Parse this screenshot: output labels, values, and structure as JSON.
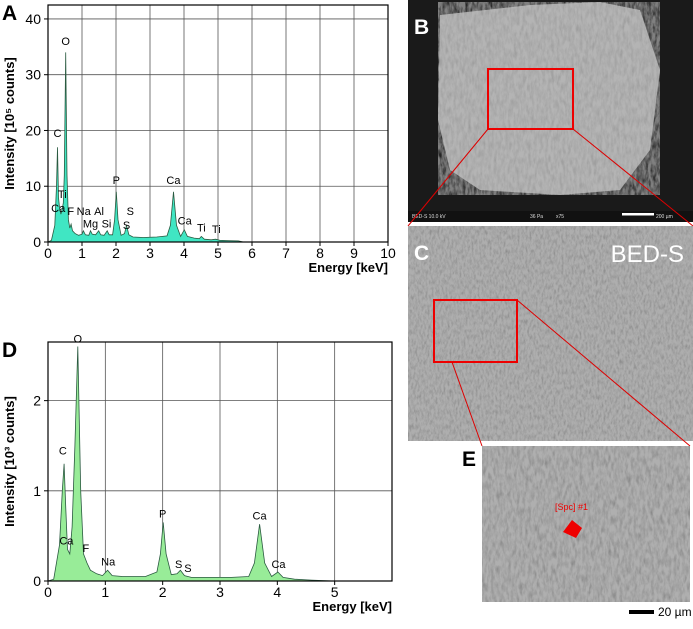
{
  "chart_data": [
    {
      "type": "area",
      "panel": "A",
      "ylabel": "Intensity [10⁵ counts]",
      "xlabel": "Energy [keV]",
      "color": "#40e6c3",
      "xlim": [
        0,
        10
      ],
      "xticks": [
        0,
        1,
        2,
        3,
        4,
        5,
        6,
        7,
        8,
        9,
        10
      ],
      "ylim": [
        0,
        42.5
      ],
      "yticks": [
        0,
        10,
        20,
        30,
        40
      ],
      "grid": true,
      "x": [
        0,
        0.1,
        0.2,
        0.25,
        0.28,
        0.31,
        0.34,
        0.38,
        0.42,
        0.45,
        0.48,
        0.52,
        0.56,
        0.6,
        0.64,
        0.68,
        0.72,
        0.8,
        0.9,
        1.0,
        1.04,
        1.1,
        1.2,
        1.25,
        1.3,
        1.4,
        1.49,
        1.55,
        1.65,
        1.74,
        1.8,
        1.9,
        1.96,
        2.01,
        2.06,
        2.15,
        2.25,
        2.31,
        2.38,
        2.5,
        2.8,
        3.2,
        3.5,
        3.6,
        3.69,
        3.78,
        3.9,
        4.01,
        4.1,
        4.3,
        4.45,
        4.51,
        4.6,
        4.8,
        4.93,
        5.05,
        5.3,
        5.6,
        5.75
      ],
      "values": [
        0,
        0.3,
        3,
        10,
        17,
        8,
        6,
        5,
        6,
        7,
        12,
        34,
        12,
        4,
        2.5,
        3.2,
        2,
        1.5,
        1.2,
        1.4,
        2,
        1.3,
        1.2,
        2,
        1.4,
        1.3,
        2,
        1.3,
        1.2,
        2,
        1.3,
        1.3,
        4,
        9,
        4,
        1.2,
        1.5,
        3,
        1.3,
        0.9,
        0.8,
        0.9,
        1.1,
        3,
        9,
        3,
        1,
        2.2,
        1,
        0.7,
        0.6,
        1,
        0.5,
        0.4,
        0.5,
        0.3,
        0.25,
        0.2,
        0
      ],
      "annotations": [
        {
          "text": "O",
          "x": 0.52,
          "y": 35
        },
        {
          "text": "C",
          "x": 0.28,
          "y": 18.5
        },
        {
          "text": "Ti",
          "x": 0.42,
          "y": 7.5
        },
        {
          "text": "Ca",
          "x": 0.3,
          "y": 5
        },
        {
          "text": "F",
          "x": 0.67,
          "y": 4.5
        },
        {
          "text": "Na",
          "x": 1.05,
          "y": 4.5
        },
        {
          "text": "Al",
          "x": 1.5,
          "y": 4.5
        },
        {
          "text": "Mg",
          "x": 1.25,
          "y": 2.2
        },
        {
          "text": "Si",
          "x": 1.72,
          "y": 2.2
        },
        {
          "text": "P",
          "x": 2.01,
          "y": 10
        },
        {
          "text": "S",
          "x": 2.42,
          "y": 4.5
        },
        {
          "text": "S",
          "x": 2.31,
          "y": 2
        },
        {
          "text": "Ca",
          "x": 3.69,
          "y": 10
        },
        {
          "text": "Ca",
          "x": 4.02,
          "y": 2.8
        },
        {
          "text": "Ti",
          "x": 4.51,
          "y": 1.5
        },
        {
          "text": "Ti",
          "x": 4.95,
          "y": 1.3
        }
      ]
    },
    {
      "type": "area",
      "panel": "D",
      "ylabel": "Intensity [10³ counts]",
      "xlabel": "Energy [keV]",
      "color": "#98ec98",
      "xlim": [
        0,
        6
      ],
      "xticks": [
        0,
        1,
        2,
        3,
        4,
        5
      ],
      "ylim": [
        0,
        2.65
      ],
      "yticks": [
        0,
        1,
        2
      ],
      "grid": true,
      "x": [
        0,
        0.1,
        0.2,
        0.25,
        0.28,
        0.31,
        0.34,
        0.38,
        0.42,
        0.47,
        0.52,
        0.57,
        0.62,
        0.68,
        0.74,
        0.85,
        0.95,
        1.04,
        1.12,
        1.3,
        1.5,
        1.7,
        1.9,
        1.96,
        2.01,
        2.06,
        2.15,
        2.25,
        2.31,
        2.38,
        2.5,
        2.8,
        3.2,
        3.5,
        3.6,
        3.69,
        3.78,
        3.9,
        4.01,
        4.1,
        4.3,
        4.6,
        5.0
      ],
      "values": [
        0,
        0.02,
        0.4,
        1.0,
        1.3,
        0.8,
        0.35,
        0.3,
        0.6,
        1.5,
        2.6,
        1.0,
        0.3,
        0.2,
        0.12,
        0.08,
        0.06,
        0.12,
        0.06,
        0.05,
        0.05,
        0.05,
        0.1,
        0.3,
        0.65,
        0.3,
        0.07,
        0.08,
        0.12,
        0.06,
        0.04,
        0.04,
        0.04,
        0.05,
        0.2,
        0.63,
        0.2,
        0.05,
        0.1,
        0.04,
        0.02,
        0.01,
        0
      ],
      "annotations": [
        {
          "text": "O",
          "x": 0.52,
          "y": 2.62
        },
        {
          "text": "C",
          "x": 0.26,
          "y": 1.38
        },
        {
          "text": "Ca",
          "x": 0.32,
          "y": 0.38
        },
        {
          "text": "F",
          "x": 0.66,
          "y": 0.3
        },
        {
          "text": "Na",
          "x": 1.05,
          "y": 0.15
        },
        {
          "text": "P",
          "x": 2.0,
          "y": 0.68
        },
        {
          "text": "S",
          "x": 2.28,
          "y": 0.12
        },
        {
          "text": "S",
          "x": 2.44,
          "y": 0.08
        },
        {
          "text": "Ca",
          "x": 3.69,
          "y": 0.66
        },
        {
          "text": "Ca",
          "x": 4.02,
          "y": 0.12
        }
      ]
    }
  ],
  "images": {
    "b": {
      "label": "B",
      "info": [
        "BED-S  10.0 kV",
        "36 Pa",
        "x75",
        "200 µm"
      ]
    },
    "c": {
      "label": "C",
      "mode": "BED-S"
    },
    "e": {
      "label": "E",
      "spot": "[Spc] #1"
    },
    "scale": "20 µm"
  }
}
